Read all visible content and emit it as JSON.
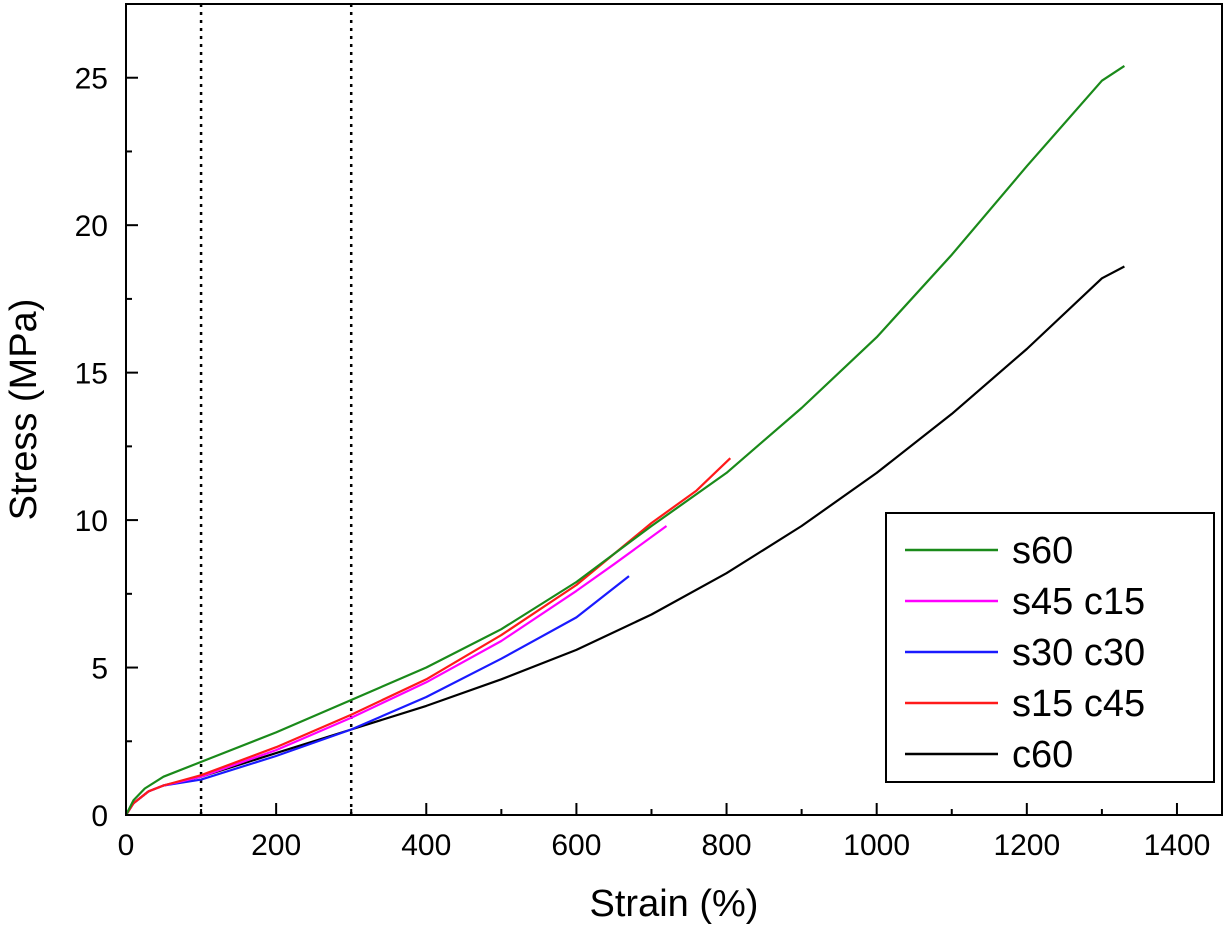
{
  "chart_data": {
    "type": "line",
    "xlabel": "Strain (%)",
    "ylabel": "Stress (MPa)",
    "xlim": [
      0,
      1460
    ],
    "ylim": [
      0,
      27.5
    ],
    "x_ticks": [
      0,
      200,
      400,
      600,
      800,
      1000,
      1200,
      1400
    ],
    "y_ticks": [
      0,
      5,
      10,
      15,
      20,
      25
    ],
    "grid": false,
    "legend_position": "bottom-right",
    "reference_lines_x": [
      100,
      300
    ],
    "series": [
      {
        "name": "s60",
        "color": "#1a8a1a",
        "points": [
          [
            0,
            0
          ],
          [
            10,
            0.5
          ],
          [
            25,
            0.9
          ],
          [
            50,
            1.3
          ],
          [
            100,
            1.8
          ],
          [
            200,
            2.8
          ],
          [
            300,
            3.9
          ],
          [
            400,
            5.0
          ],
          [
            500,
            6.3
          ],
          [
            600,
            7.9
          ],
          [
            700,
            9.8
          ],
          [
            800,
            11.6
          ],
          [
            900,
            13.8
          ],
          [
            1000,
            16.2
          ],
          [
            1100,
            19.0
          ],
          [
            1200,
            22.0
          ],
          [
            1300,
            24.9
          ],
          [
            1330,
            25.4
          ]
        ]
      },
      {
        "name": "s45 c15",
        "color": "#ff00ff",
        "points": [
          [
            0,
            0
          ],
          [
            10,
            0.4
          ],
          [
            30,
            0.8
          ],
          [
            50,
            1.0
          ],
          [
            100,
            1.3
          ],
          [
            200,
            2.2
          ],
          [
            300,
            3.3
          ],
          [
            400,
            4.5
          ],
          [
            500,
            5.9
          ],
          [
            600,
            7.6
          ],
          [
            650,
            8.5
          ],
          [
            720,
            9.8
          ]
        ]
      },
      {
        "name": "s30 c30",
        "color": "#1a1aff",
        "points": [
          [
            0,
            0
          ],
          [
            10,
            0.4
          ],
          [
            30,
            0.8
          ],
          [
            50,
            1.0
          ],
          [
            100,
            1.2
          ],
          [
            200,
            2.0
          ],
          [
            300,
            2.9
          ],
          [
            400,
            4.0
          ],
          [
            500,
            5.3
          ],
          [
            600,
            6.7
          ],
          [
            670,
            8.1
          ]
        ]
      },
      {
        "name": "s15 c45",
        "color": "#ff1a1a",
        "points": [
          [
            0,
            0
          ],
          [
            10,
            0.4
          ],
          [
            30,
            0.8
          ],
          [
            50,
            1.0
          ],
          [
            100,
            1.35
          ],
          [
            200,
            2.3
          ],
          [
            300,
            3.4
          ],
          [
            400,
            4.6
          ],
          [
            500,
            6.1
          ],
          [
            600,
            7.8
          ],
          [
            700,
            9.9
          ],
          [
            760,
            11.0
          ],
          [
            805,
            12.1
          ]
        ]
      },
      {
        "name": "c60",
        "color": "#000000",
        "points": [
          [
            0,
            0
          ],
          [
            10,
            0.4
          ],
          [
            30,
            0.8
          ],
          [
            50,
            1.0
          ],
          [
            100,
            1.3
          ],
          [
            200,
            2.1
          ],
          [
            300,
            2.9
          ],
          [
            400,
            3.7
          ],
          [
            500,
            4.6
          ],
          [
            600,
            5.6
          ],
          [
            700,
            6.8
          ],
          [
            800,
            8.2
          ],
          [
            900,
            9.8
          ],
          [
            1000,
            11.6
          ],
          [
            1100,
            13.6
          ],
          [
            1200,
            15.8
          ],
          [
            1300,
            18.2
          ],
          [
            1330,
            18.6
          ]
        ]
      }
    ]
  }
}
